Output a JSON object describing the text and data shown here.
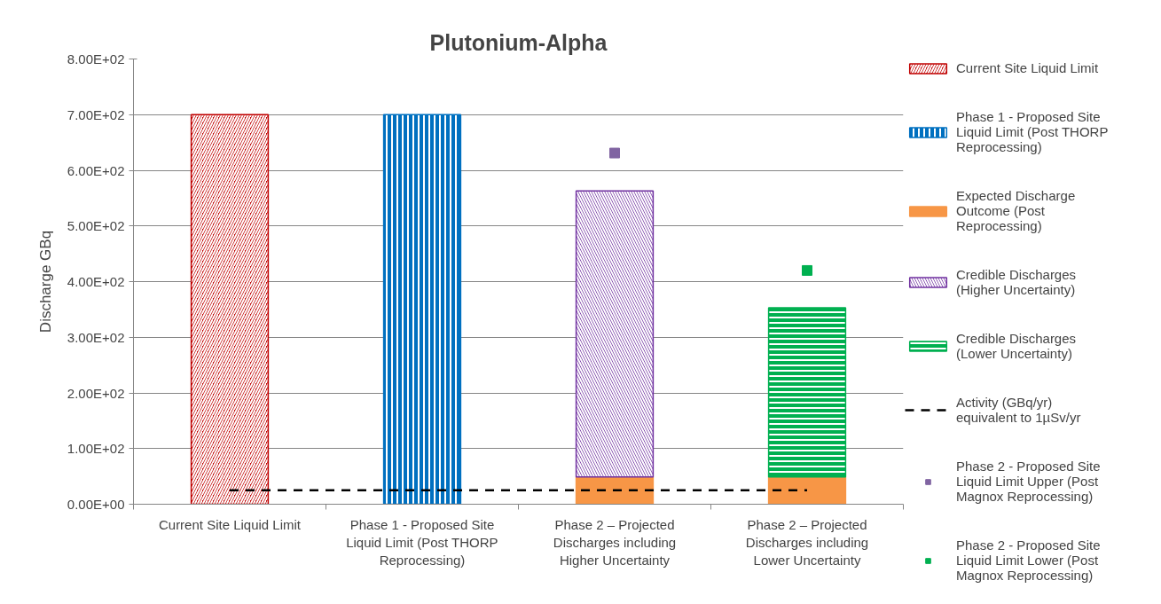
{
  "chart_data": {
    "type": "bar",
    "title": "Plutonium-Alpha",
    "ylabel": "Discharge GBq",
    "categories": [
      "Current Site Liquid Limit",
      "Phase 1 - Proposed Site Liquid Limit (Post THORP Reprocessing)",
      "Phase 2 – Projected Discharges including Higher Uncertainty",
      "Phase 2 – Projected Discharges including Lower Uncertainty"
    ],
    "stacked": true,
    "ylim": [
      0,
      800
    ],
    "yticks": [
      {
        "value": 0,
        "label": "0.00E+00"
      },
      {
        "value": 100,
        "label": "1.00E+02"
      },
      {
        "value": 200,
        "label": "2.00E+02"
      },
      {
        "value": 300,
        "label": "3.00E+02"
      },
      {
        "value": 400,
        "label": "4.00E+02"
      },
      {
        "value": 500,
        "label": "5.00E+02"
      },
      {
        "value": 600,
        "label": "6.00E+02"
      },
      {
        "value": 700,
        "label": "7.00E+02"
      },
      {
        "value": 800,
        "label": "8.00E+02"
      }
    ],
    "grid": "y",
    "legend": "right",
    "series": [
      {
        "name": "Current Site Liquid Limit",
        "color": "#c00000",
        "values": [
          700,
          null,
          null,
          null
        ]
      },
      {
        "name": "Phase 1 - Proposed Site Liquid Limit (Post THORP Reprocessing)",
        "color": "#0070c0",
        "values": [
          null,
          700,
          null,
          null
        ]
      },
      {
        "name": "Expected Discharge Outcome (Post Reprocessing)",
        "color": "#f79646",
        "values": [
          null,
          null,
          49,
          49
        ]
      },
      {
        "name": "Credible Discharges (Higher Uncertainty)",
        "color": "#7030a0",
        "values": [
          null,
          null,
          514,
          null
        ]
      },
      {
        "name": "Credible Discharges (Lower Uncertainty)",
        "color": "#00b050",
        "values": [
          null,
          null,
          null,
          304
        ]
      },
      {
        "name": "Activity (GBq/yr) equivalent to 1µSv/yr",
        "type": "line",
        "color": "#000000",
        "line_style": "dashed",
        "values": [
          25,
          25,
          25,
          25
        ]
      },
      {
        "name": "Phase 2 - Proposed Site Liquid Limit Upper (Post Magnox Reprocessing)",
        "type": "scatter",
        "marker": "square",
        "color": "#8064a2",
        "values": [
          null,
          null,
          631,
          null
        ]
      },
      {
        "name": "Phase 2 - Proposed Site Liquid Limit Lower (Post Magnox Reprocessing)",
        "type": "scatter",
        "marker": "square",
        "color": "#00b050",
        "values": [
          null,
          null,
          null,
          420
        ]
      }
    ]
  }
}
